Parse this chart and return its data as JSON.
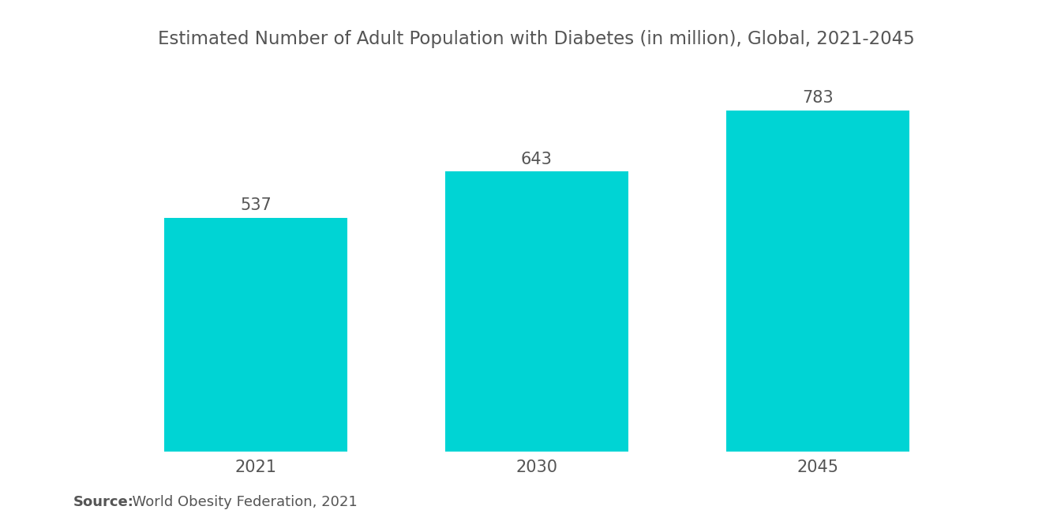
{
  "title": "Estimated Number of Adult Population with Diabetes (in million), Global, 2021-2045",
  "categories": [
    "2021",
    "2030",
    "2045"
  ],
  "values": [
    537,
    643,
    783
  ],
  "bar_color": "#00D4D4",
  "label_color": "#555555",
  "title_color": "#555555",
  "source_bold": "Source:",
  "source_normal": "  World Obesity Federation, 2021",
  "background_color": "#ffffff",
  "bar_width": 0.65,
  "ylim": [
    0,
    880
  ],
  "title_fontsize": 16.5,
  "tick_fontsize": 15,
  "source_fontsize": 13,
  "value_fontsize": 15
}
